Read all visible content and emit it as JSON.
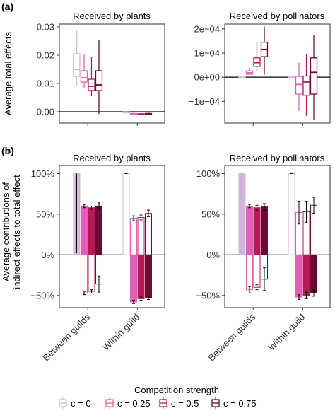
{
  "figure": {
    "panel_a_label": "(a)",
    "panel_b_label": "(b)",
    "legend_title": "Competition strength",
    "legend_entries": [
      "c = 0",
      "c = 0.25",
      "c = 0.5",
      "c = 0.75"
    ]
  },
  "colors": {
    "c0": "#d4b4dc",
    "c025": "#e060b8",
    "c05": "#b8185a",
    "c075": "#6a0c32"
  },
  "chart_data": [
    {
      "type": "box",
      "panel": "a-left",
      "title": "Received by plants",
      "ylabel": "Average total effects",
      "ylim": [
        -0.004,
        0.031
      ],
      "yticks": [
        0.0,
        0.01,
        0.02,
        0.03
      ],
      "ytick_labels": [
        "0.00",
        "0.01",
        "0.02",
        "0.03"
      ],
      "hline": 0,
      "groups": [
        "Between guilds",
        "Within guild"
      ],
      "series": [
        {
          "name": "c = 0",
          "boxes": [
            {
              "min": 0.009,
              "q1": 0.0125,
              "median": 0.015,
              "q3": 0.0205,
              "max": 0.029
            },
            {
              "min": -0.0005,
              "q1": -0.0003,
              "median": -0.0002,
              "q3": -0.0001,
              "max": 0.0
            }
          ]
        },
        {
          "name": "c = 0.25",
          "boxes": [
            {
              "min": 0.0085,
              "q1": 0.0105,
              "median": 0.012,
              "q3": 0.0145,
              "max": 0.0205
            },
            {
              "min": -0.0012,
              "q1": -0.001,
              "median": -0.0008,
              "q3": -0.0006,
              "max": -0.0004
            }
          ]
        },
        {
          "name": "c = 0.5",
          "boxes": [
            {
              "min": 0.0055,
              "q1": 0.0075,
              "median": 0.009,
              "q3": 0.0115,
              "max": 0.0195
            },
            {
              "min": -0.0012,
              "q1": -0.0011,
              "median": -0.0009,
              "q3": -0.0007,
              "max": -0.0005
            }
          ]
        },
        {
          "name": "c = 0.75",
          "boxes": [
            {
              "min": -0.0008,
              "q1": 0.0075,
              "median": 0.0095,
              "q3": 0.0145,
              "max": 0.0255
            },
            {
              "min": -0.0012,
              "q1": -0.001,
              "median": -0.0008,
              "q3": -0.0006,
              "max": -0.0003
            }
          ]
        }
      ]
    },
    {
      "type": "box",
      "panel": "a-right",
      "title": "Received by pollinators",
      "ylim": [
        -0.00019,
        0.00022
      ],
      "yticks": [
        -0.0001,
        0.0,
        0.0001,
        0.0002
      ],
      "ytick_labels": [
        "−1e−04",
        "0e+00",
        "1e−04",
        "2e−04"
      ],
      "hline": 0,
      "groups": [
        "Between guilds",
        "Within guild"
      ],
      "series": [
        {
          "name": "c = 0",
          "boxes": [
            {
              "min": 0.0,
              "q1": 0.0,
              "median": 0.0,
              "q3": 0.0,
              "max": 0.0
            },
            {
              "min": 0.0,
              "q1": 0.0,
              "median": 0.0,
              "q3": 0.0,
              "max": 0.0
            }
          ]
        },
        {
          "name": "c = 0.25",
          "boxes": [
            {
              "min": 1e-05,
              "q1": 1.2e-05,
              "median": 1.8e-05,
              "q3": 2.6e-05,
              "max": 4e-05
            },
            {
              "min": -0.00014,
              "q1": -7e-05,
              "median": -3e-05,
              "q3": 3e-06,
              "max": 6e-05
            }
          ]
        },
        {
          "name": "c = 0.5",
          "boxes": [
            {
              "min": 2.5e-05,
              "q1": 4.5e-05,
              "median": 6e-05,
              "q3": 8e-05,
              "max": 0.000145
            },
            {
              "min": -0.00016,
              "q1": -7.5e-05,
              "median": -2e-05,
              "q3": 5e-06,
              "max": 9.5e-05
            }
          ]
        },
        {
          "name": "c = 0.75",
          "boxes": [
            {
              "min": 1e-05,
              "q1": 8.5e-05,
              "median": 0.000115,
              "q3": 0.000145,
              "max": 0.00021
            },
            {
              "min": -0.000175,
              "q1": -7e-05,
              "median": 2e-05,
              "q3": 8e-05,
              "max": 0.000175
            }
          ]
        }
      ]
    },
    {
      "type": "bar",
      "panel": "b-left",
      "title": "Received by plants",
      "ylabel": "Average contributions of indirect effects to total effect",
      "ylim": [
        -65,
        110
      ],
      "yticks": [
        -50,
        0,
        50,
        100
      ],
      "ytick_labels": [
        "−50%",
        "0%",
        "50%",
        "100%"
      ],
      "hline": 0,
      "categories": [
        "Between guilds",
        "Within guild"
      ],
      "series": [
        {
          "name": "c = 0",
          "pos": [
            100,
            100
          ],
          "pos_err": [
            0,
            0
          ],
          "neg": [
            0,
            0
          ],
          "neg_err": [
            0,
            0
          ],
          "pos_whisker_low": [
            2,
            0
          ]
        },
        {
          "name": "c = 0.25",
          "pos": [
            60,
            45
          ],
          "pos_err": [
            2,
            3
          ],
          "neg": [
            -47,
            -58
          ],
          "neg_err": [
            2,
            2
          ]
        },
        {
          "name": "c = 0.5",
          "pos": [
            58,
            46
          ],
          "pos_err": [
            2,
            3
          ],
          "neg": [
            -45,
            -54
          ],
          "neg_err": [
            2,
            2
          ]
        },
        {
          "name": "c = 0.75",
          "pos": [
            60,
            51
          ],
          "pos_err": [
            4,
            4
          ],
          "neg": [
            -36,
            -53
          ],
          "neg_err": [
            10,
            2
          ]
        }
      ]
    },
    {
      "type": "bar",
      "panel": "b-right",
      "title": "Received by pollinators",
      "ylim": [
        -65,
        110
      ],
      "yticks": [
        -50,
        0,
        50,
        100
      ],
      "ytick_labels": [
        "−50%",
        "0%",
        "50%",
        "100%"
      ],
      "hline": 0,
      "categories": [
        "Between guilds",
        "Within guild"
      ],
      "series": [
        {
          "name": "c = 0",
          "pos": [
            100,
            100
          ],
          "pos_err": [
            0,
            0
          ],
          "neg": [
            0,
            0
          ],
          "neg_err": [
            0,
            0
          ],
          "pos_whisker_low": [
            2,
            0
          ]
        },
        {
          "name": "c = 0.25",
          "pos": [
            60,
            52
          ],
          "pos_err": [
            2,
            14
          ],
          "neg": [
            -43,
            -52
          ],
          "neg_err": [
            4,
            3
          ]
        },
        {
          "name": "c = 0.5",
          "pos": [
            58,
            53
          ],
          "pos_err": [
            3,
            13
          ],
          "neg": [
            -40,
            -50
          ],
          "neg_err": [
            3,
            4
          ]
        },
        {
          "name": "c = 0.75",
          "pos": [
            59,
            61
          ],
          "pos_err": [
            4,
            10
          ],
          "neg": [
            -30,
            -47
          ],
          "neg_err": [
            14,
            4
          ]
        }
      ]
    }
  ]
}
